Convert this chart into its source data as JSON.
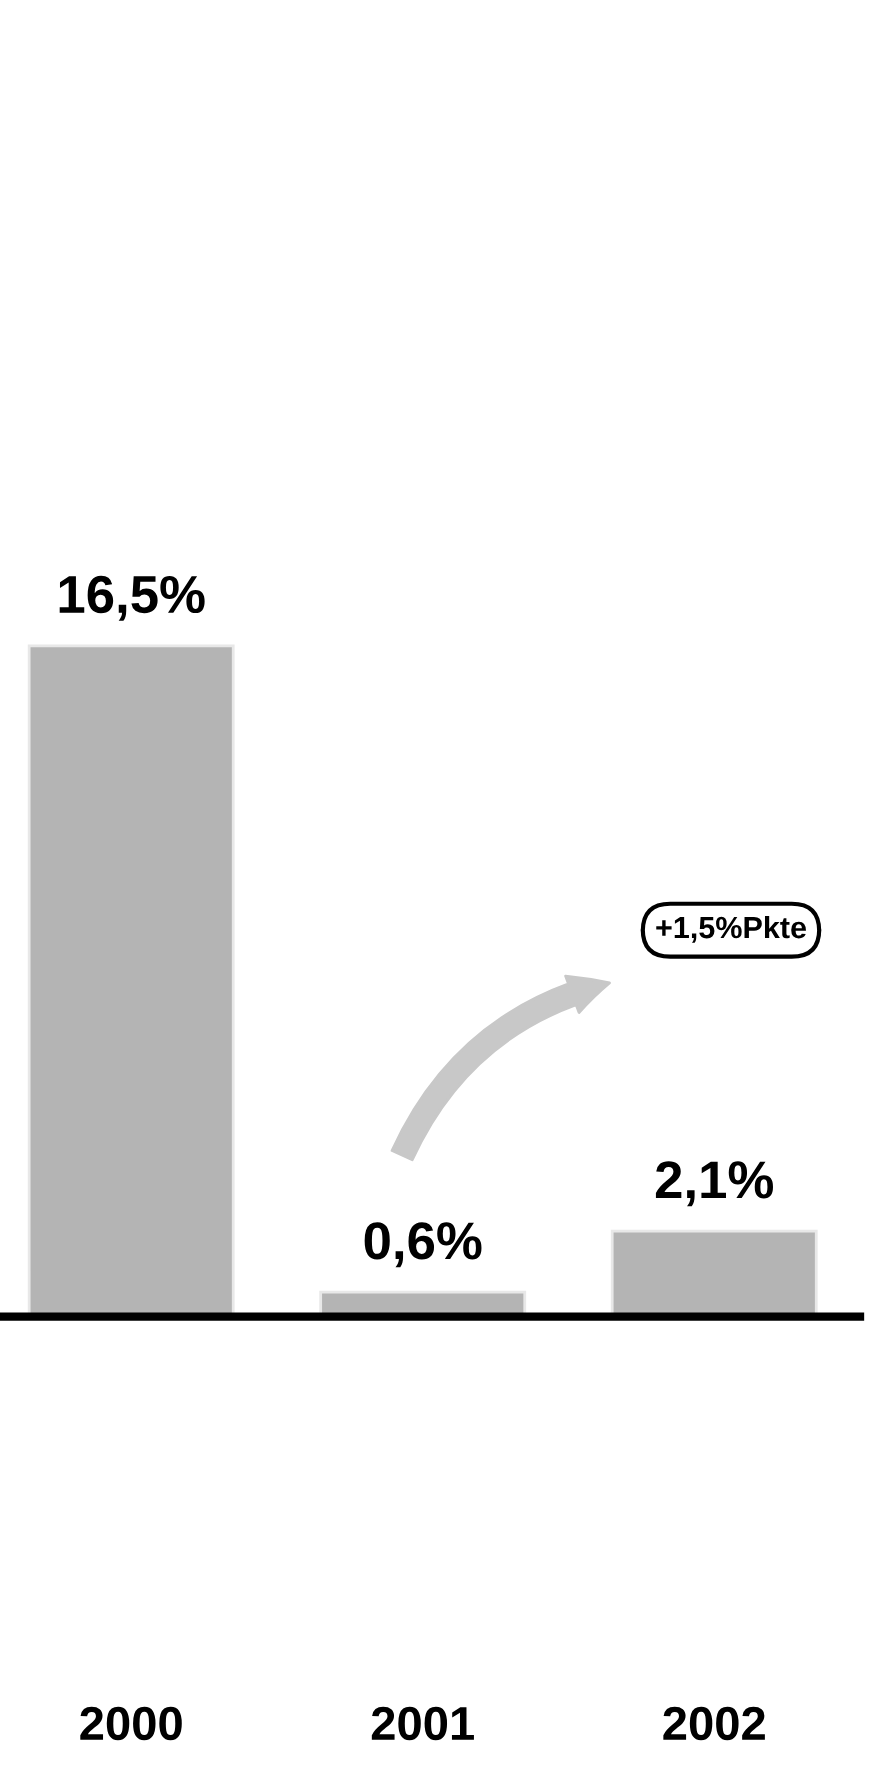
{
  "chart_data": {
    "type": "bar",
    "categories": [
      "2000",
      "2001",
      "2002"
    ],
    "values": [
      16.5,
      0.6,
      2.1
    ],
    "value_labels": [
      "16,5%",
      "0,6%",
      "2,1%"
    ],
    "color": "#b4b4b4",
    "annotations": [
      "+1,5%Pkte"
    ],
    "grid": false,
    "legend": false
  }
}
